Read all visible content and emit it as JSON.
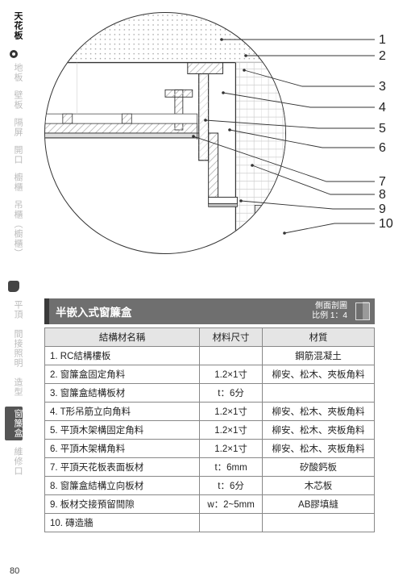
{
  "sidebar": {
    "s0": "天花板",
    "s1": "地板",
    "s2": "壁板",
    "s3": "隔屏",
    "s4": "開口",
    "s5": "櫥櫃",
    "s6": "吊櫃（櫥櫃）",
    "s7": "平頂",
    "s8": "間接照明",
    "s9": "造型",
    "s10": "窗簾盒",
    "s11": "維修口"
  },
  "title": {
    "main": "半嵌入式窗簾盒",
    "right1": "側面剖圖",
    "right2": "比例 1：4"
  },
  "callout_numbers": [
    "1",
    "2",
    "3",
    "4",
    "5",
    "6",
    "7",
    "8",
    "9",
    "10"
  ],
  "table": {
    "headers": {
      "name": "結構材名稱",
      "size": "材料尺寸",
      "mat": "材質"
    },
    "rows": [
      {
        "n": "1. RC結構樓板",
        "s": "",
        "m": "鋼筋混凝土"
      },
      {
        "n": "2. 窗簾盒固定角料",
        "s": "1.2×1寸",
        "m": "柳安、松木、夾板角料"
      },
      {
        "n": "3. 窗簾盒結構板材",
        "s": "t：6分",
        "m": ""
      },
      {
        "n": "4. T形吊筋立向角料",
        "s": "1.2×1寸",
        "m": "柳安、松木、夾板角料"
      },
      {
        "n": "5. 平頂木架構固定角料",
        "s": "1.2×1寸",
        "m": "柳安、松木、夾板角料"
      },
      {
        "n": "6. 平頂木架構角料",
        "s": "1.2×1寸",
        "m": "柳安、松木、夾板角料"
      },
      {
        "n": "7. 平頂天花板表面板材",
        "s": "t：6mm",
        "m": "矽酸鈣板"
      },
      {
        "n": "8. 窗簾盒結構立向板材",
        "s": "t：6分",
        "m": "木芯板"
      },
      {
        "n": "9. 板材交接預留間隙",
        "s": "w：2~5mm",
        "m": "AB膠填縫"
      },
      {
        "n": "10. 磚造牆",
        "s": "",
        "m": ""
      }
    ],
    "col_widths": {
      "name": "47%",
      "size": "19%",
      "mat": "34%"
    }
  },
  "page_number": "80",
  "diagram_style": {
    "stroke": "#333",
    "hatch": "#bfbfbf",
    "dot": "#333",
    "bg": "#ffffff",
    "fine": "#cccccc"
  }
}
